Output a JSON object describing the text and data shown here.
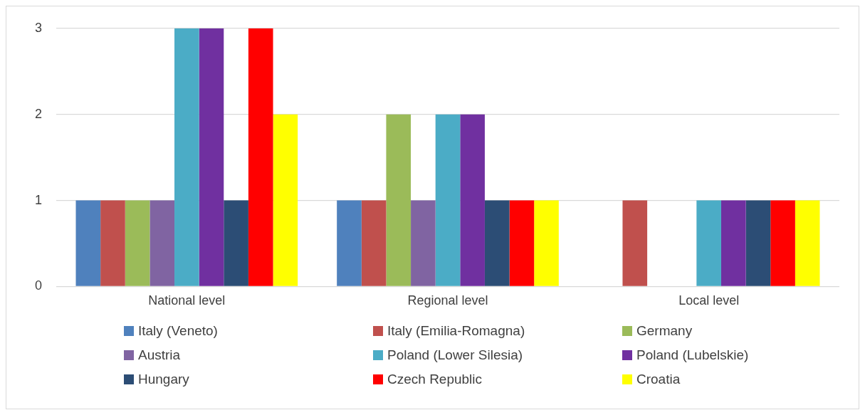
{
  "chart_data": {
    "type": "bar",
    "categories": [
      "National level",
      "Regional level",
      "Local level"
    ],
    "series": [
      {
        "name": "Italy (Veneto)",
        "color": "#4f81bd",
        "values": [
          1,
          1,
          0
        ]
      },
      {
        "name": "Italy (Emilia-Romagna)",
        "color": "#c0504d",
        "values": [
          1,
          1,
          1
        ]
      },
      {
        "name": "Germany",
        "color": "#9bbb59",
        "values": [
          1,
          2,
          0
        ]
      },
      {
        "name": "Austria",
        "color": "#8064a2",
        "values": [
          1,
          1,
          0
        ]
      },
      {
        "name": "Poland (Lower Silesia)",
        "color": "#4bacc6",
        "values": [
          3,
          2,
          1
        ]
      },
      {
        "name": "Poland (Lubelskie)",
        "color": "#7030a0",
        "values": [
          3,
          2,
          1
        ]
      },
      {
        "name": "Hungary",
        "color": "#2c4d75",
        "values": [
          1,
          1,
          1
        ]
      },
      {
        "name": "Czech Republic",
        "color": "#ff0000",
        "values": [
          3,
          1,
          1
        ]
      },
      {
        "name": "Croatia",
        "color": "#ffff00",
        "values": [
          2,
          1,
          1
        ]
      }
    ],
    "ylim": [
      0,
      3
    ],
    "yticks": [
      0,
      1,
      2,
      3
    ],
    "grid": "y",
    "legend": "bottom"
  }
}
